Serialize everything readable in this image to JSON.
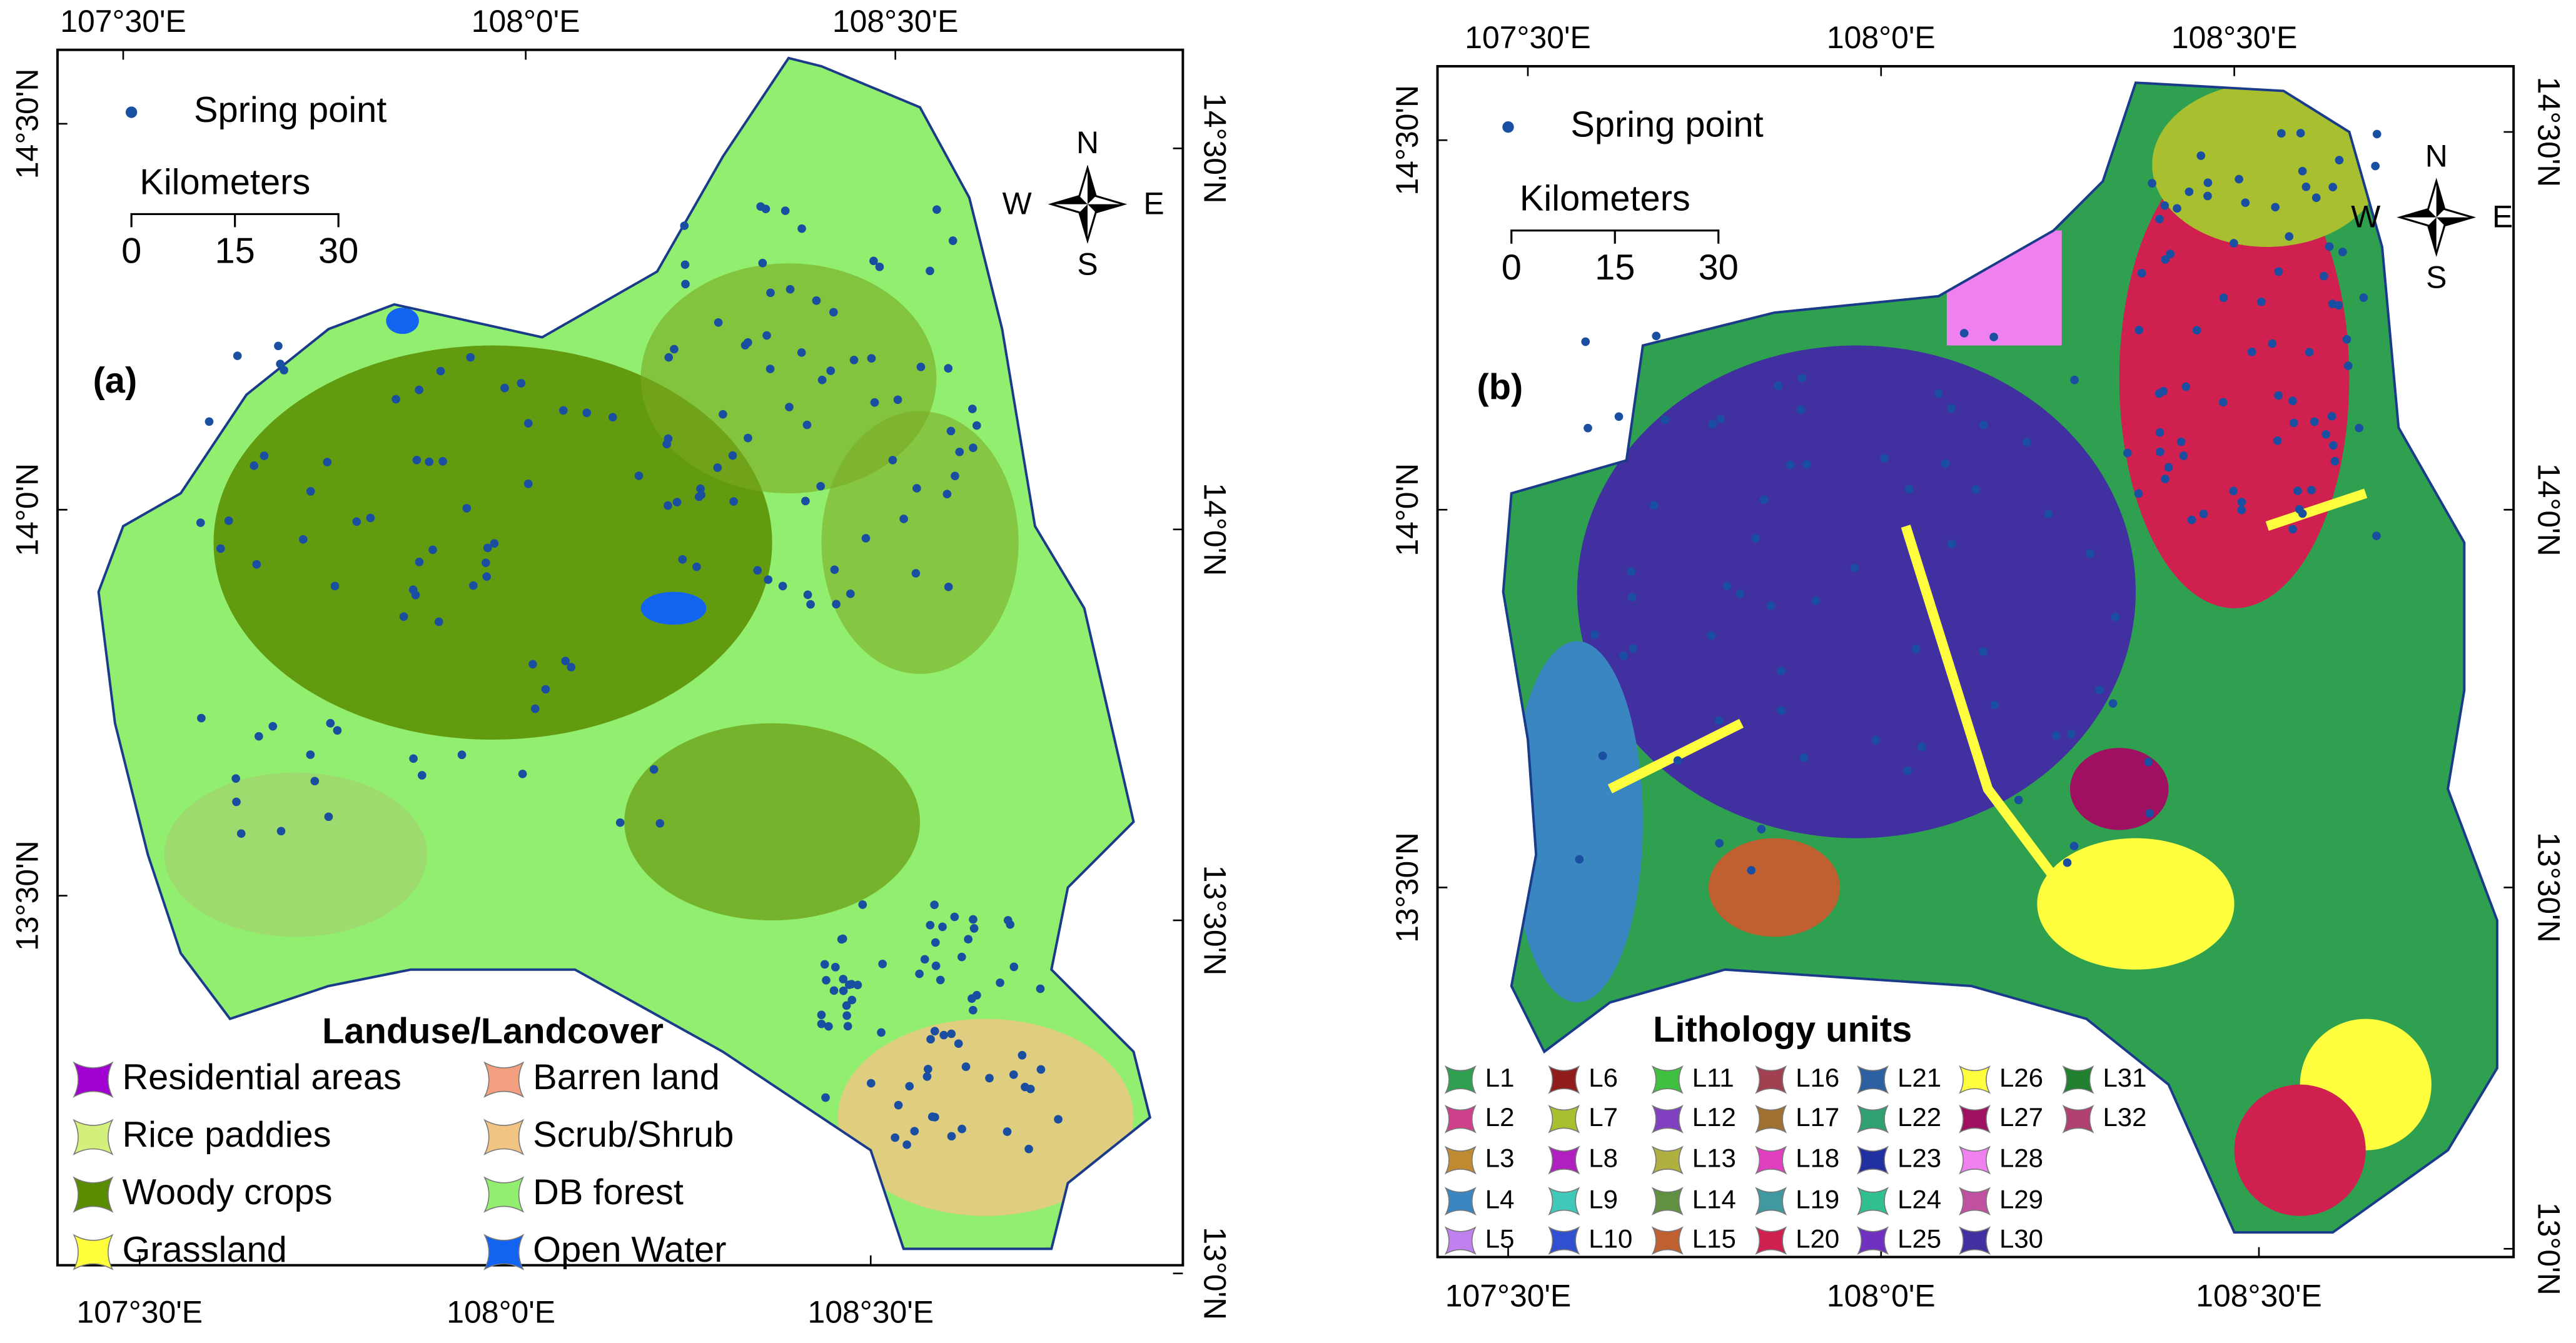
{
  "panels": [
    {
      "label": "(a)",
      "legend_point": "Spring point",
      "scale": {
        "title": "Kilometers",
        "ticks": [
          "0",
          "15",
          "30"
        ]
      },
      "compass": {
        "n": "N",
        "w": "W",
        "e": "E",
        "s": "S"
      },
      "top_ticks": [
        "107°30'E",
        "108°0'E",
        "108°30'E"
      ],
      "bottom_ticks": [
        "107°30'E",
        "108°0'E",
        "108°30'E"
      ],
      "left_ticks": [
        "14°30'N",
        "14°0'N",
        "13°30'N"
      ],
      "right_ticks": [
        "14°30'N",
        "14°0'N",
        "13°30'N",
        "13°0'N"
      ],
      "legend": {
        "title": "Landuse/Landcover",
        "items": [
          {
            "label": "Residential areas",
            "color": "#a000d0"
          },
          {
            "label": "Barren land",
            "color": "#f4a080"
          },
          {
            "label": "Rice paddies",
            "color": "#d4f07c"
          },
          {
            "label": "Scrub/Shrub",
            "color": "#f2c484"
          },
          {
            "label": "Woody crops",
            "color": "#5a8c00"
          },
          {
            "label": "DB forest",
            "color": "#92ee6e"
          },
          {
            "label": "Grassland",
            "color": "#ffff3c"
          },
          {
            "label": "Open Water",
            "color": "#1264f0"
          }
        ]
      }
    },
    {
      "label": "(b)",
      "legend_point": "Spring point",
      "scale": {
        "title": "Kilometers",
        "ticks": [
          "0",
          "15",
          "30"
        ]
      },
      "compass": {
        "n": "N",
        "w": "W",
        "e": "E",
        "s": "S"
      },
      "top_ticks": [
        "107°30'E",
        "108°0'E",
        "108°30'E"
      ],
      "bottom_ticks": [
        "107°30'E",
        "108°0'E",
        "108°30'E"
      ],
      "left_ticks": [
        "14°30'N",
        "14°0'N",
        "13°30'N"
      ],
      "right_ticks": [
        "14°30'N",
        "14°0'N",
        "13°30'N",
        "13°0'N"
      ],
      "legend": {
        "title": "Lithology units",
        "items": [
          {
            "label": "L1",
            "color": "#2ea050"
          },
          {
            "label": "L2",
            "color": "#d0408a"
          },
          {
            "label": "L3",
            "color": "#c08a30"
          },
          {
            "label": "L4",
            "color": "#3a86c0"
          },
          {
            "label": "L5",
            "color": "#c080f0"
          },
          {
            "label": "L6",
            "color": "#901c1c"
          },
          {
            "label": "L7",
            "color": "#a8c030"
          },
          {
            "label": "L8",
            "color": "#b020c0"
          },
          {
            "label": "L9",
            "color": "#40c8b8"
          },
          {
            "label": "L10",
            "color": "#3050d0"
          },
          {
            "label": "L11",
            "color": "#40c040"
          },
          {
            "label": "L12",
            "color": "#8040c0"
          },
          {
            "label": "L13",
            "color": "#b0b040"
          },
          {
            "label": "L14",
            "color": "#609040"
          },
          {
            "label": "L15",
            "color": "#c06030"
          },
          {
            "label": "L16",
            "color": "#a04050"
          },
          {
            "label": "L17",
            "color": "#a07030"
          },
          {
            "label": "L18",
            "color": "#e040c0"
          },
          {
            "label": "L19",
            "color": "#4098a0"
          },
          {
            "label": "L20",
            "color": "#d02050"
          },
          {
            "label": "L21",
            "color": "#2c60a0"
          },
          {
            "label": "L22",
            "color": "#30a070"
          },
          {
            "label": "L23",
            "color": "#2030a0"
          },
          {
            "label": "L24",
            "color": "#30c090"
          },
          {
            "label": "L25",
            "color": "#7030c0"
          },
          {
            "label": "L26",
            "color": "#ffff40"
          },
          {
            "label": "L27",
            "color": "#a01060"
          },
          {
            "label": "L28",
            "color": "#f080f0"
          },
          {
            "label": "L29",
            "color": "#c050a0"
          },
          {
            "label": "L30",
            "color": "#4030a0"
          },
          {
            "label": "L31",
            "color": "#208030"
          },
          {
            "label": "L32",
            "color": "#b04070"
          }
        ]
      }
    }
  ]
}
